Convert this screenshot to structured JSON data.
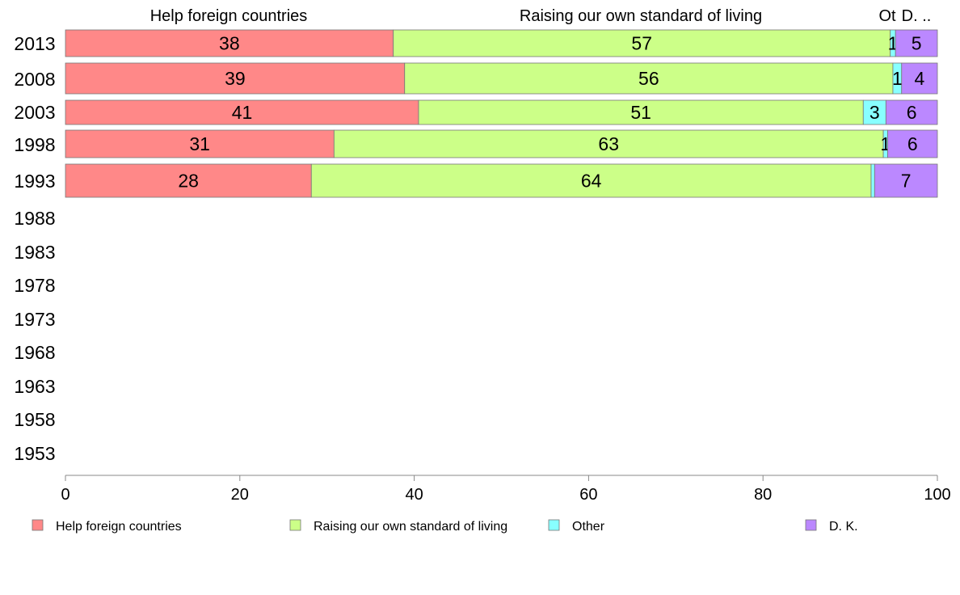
{
  "chart_data": {
    "type": "bar",
    "orientation": "horizontal",
    "stacked": true,
    "categories": [
      "2013",
      "2008",
      "2003",
      "1998",
      "1993",
      "1988",
      "1983",
      "1978",
      "1973",
      "1968",
      "1963",
      "1958",
      "1953"
    ],
    "series": [
      {
        "name": "Help foreign countries",
        "color": "#ff8888",
        "values": [
          37.6,
          38.9,
          40.5,
          30.8,
          28.2,
          null,
          null,
          null,
          null,
          null,
          null,
          null,
          null
        ],
        "labels": [
          "38",
          "39",
          "41",
          "31",
          "28",
          "",
          "",
          "",
          "",
          "",
          "",
          "",
          ""
        ]
      },
      {
        "name": "Raising our own standard of living",
        "color": "#ccff88",
        "values": [
          57.0,
          56.0,
          51.0,
          63.0,
          64.2,
          null,
          null,
          null,
          null,
          null,
          null,
          null,
          null
        ],
        "labels": [
          "57",
          "56",
          "51",
          "63",
          "64",
          "",
          "",
          "",
          "",
          "",
          "",
          "",
          ""
        ]
      },
      {
        "name": "Other",
        "color": "#88ffff",
        "values": [
          0.6,
          1.0,
          2.6,
          0.5,
          0.4,
          null,
          null,
          null,
          null,
          null,
          null,
          null,
          null
        ],
        "labels": [
          "1",
          "1",
          "3",
          "1",
          "",
          "",
          "",
          "",
          "",
          "",
          "",
          "",
          ""
        ]
      },
      {
        "name": "D. K.",
        "color": "#bb88ff",
        "values": [
          4.8,
          4.1,
          5.9,
          5.7,
          7.2,
          null,
          null,
          null,
          null,
          null,
          null,
          null,
          null
        ],
        "labels": [
          "5",
          "4",
          "6",
          "6",
          "7",
          "",
          "",
          "",
          "",
          "",
          "",
          "",
          ""
        ]
      }
    ],
    "column_headers": [
      "Help foreign countries",
      "Raising our own standard of living",
      "Ot",
      "D. .."
    ],
    "x_ticks": [
      "0",
      "20",
      "40",
      "60",
      "80",
      "100"
    ],
    "xlim": [
      0,
      100
    ],
    "legend": {
      "placement": "bottom",
      "entries": [
        "Help foreign countries",
        "Raising our own standard of living",
        "Other",
        "D. K."
      ]
    },
    "grid": false,
    "title": "",
    "xlabel": "",
    "ylabel": ""
  }
}
